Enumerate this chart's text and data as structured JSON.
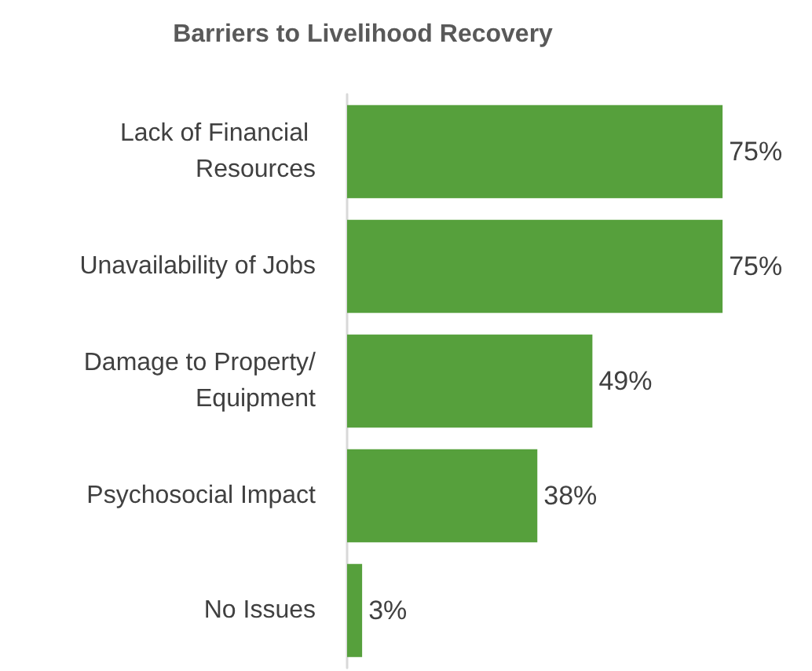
{
  "chart_data": {
    "type": "bar",
    "orientation": "horizontal",
    "title": "Barriers to Livelihood Recovery",
    "categories": [
      "Lack of Financial Resources",
      "Unavailability of Jobs",
      "Damage to Property/Equipment",
      "Psychosocial Impact",
      "No Issues"
    ],
    "values": [
      75,
      75,
      49,
      38,
      3
    ],
    "value_labels": [
      "75%",
      "75%",
      "49%",
      "38%",
      "3%"
    ],
    "color": "#56a03c"
  }
}
